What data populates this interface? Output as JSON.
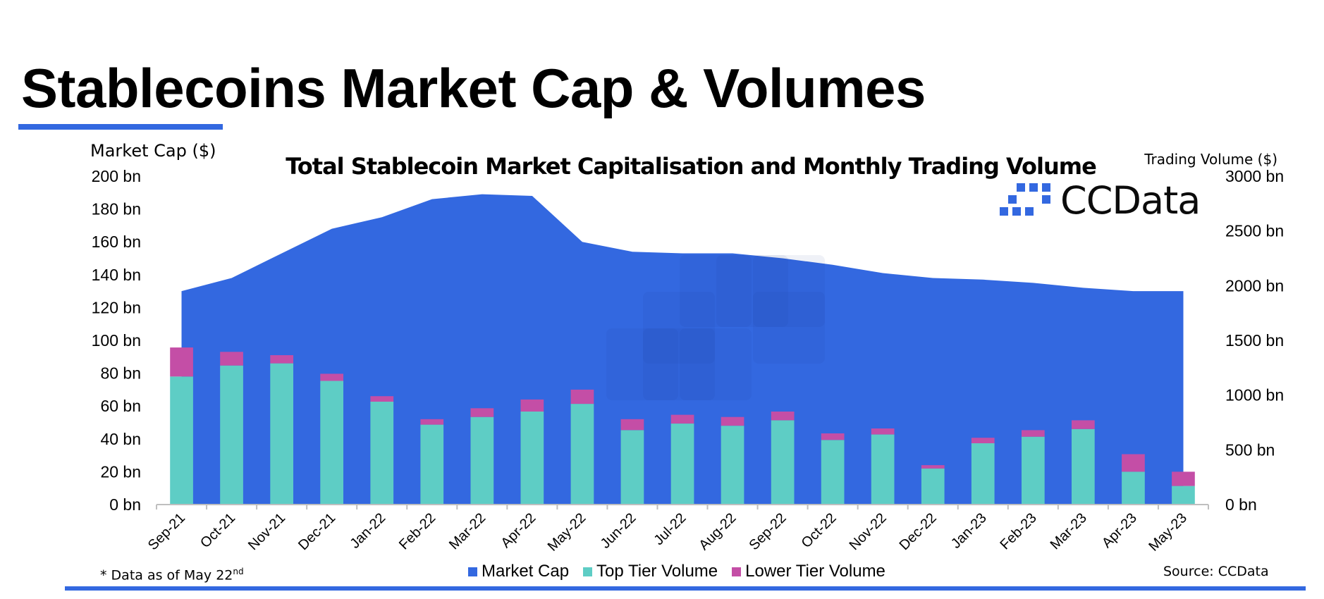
{
  "page": {
    "title": "Stablecoins Market Cap & Volumes",
    "footnote": "* Data as of May 22",
    "footnote_sup": "nd",
    "source": "Source: CCData"
  },
  "brand": {
    "name": "CCData",
    "icon": "ccdata-logo-icon"
  },
  "colors": {
    "market_cap": "#3368e0",
    "top_tier": "#5ecdc5",
    "lower_tier": "#c44ea6",
    "accent_rule": "#3368e0",
    "axis": "#bfbfbf"
  },
  "chart_data": {
    "type": "bar",
    "title": "Total Stablecoin Market Capitalisation and Monthly Trading Volume",
    "y_left_label": "Market Cap ($)",
    "y_right_label": "Trading Volume ($)",
    "y_left_range": [
      0,
      200
    ],
    "y_left_ticks": [
      "0 bn",
      "20 bn",
      "40 bn",
      "60 bn",
      "80 bn",
      "100 bn",
      "120 bn",
      "140 bn",
      "160 bn",
      "180 bn",
      "200 bn"
    ],
    "y_right_range": [
      0,
      3000
    ],
    "y_right_ticks": [
      "0 bn",
      "500 bn",
      "1000 bn",
      "1500 bn",
      "2000 bn",
      "2500 bn",
      "3000 bn"
    ],
    "grid": false,
    "legend_position": "bottom",
    "categories": [
      "Sep-21",
      "Oct-21",
      "Nov-21",
      "Dec-21",
      "Jan-22",
      "Feb-22",
      "Mar-22",
      "Apr-22",
      "May-22",
      "Jun-22",
      "Jul-22",
      "Aug-22",
      "Sep-22",
      "Oct-22",
      "Nov-22",
      "Dec-22",
      "Jan-23",
      "Feb-23",
      "Mar-23",
      "Apr-23",
      "May-23"
    ],
    "series": [
      {
        "name": "Market Cap",
        "type": "area",
        "axis": "left",
        "values": [
          130,
          138,
          153,
          168,
          175,
          186,
          189,
          188,
          160,
          154,
          153,
          153,
          150,
          146,
          141,
          138,
          137,
          135,
          132,
          130,
          130
        ]
      },
      {
        "name": "Top Tier Volume",
        "type": "bar",
        "axis": "right",
        "stack": "volume",
        "values": [
          1170,
          1270,
          1290,
          1130,
          940,
          730,
          800,
          850,
          920,
          680,
          740,
          720,
          770,
          590,
          640,
          330,
          560,
          620,
          690,
          300,
          170
        ]
      },
      {
        "name": "Lower Tier Volume",
        "type": "bar",
        "axis": "right",
        "stack": "volume",
        "values": [
          265,
          125,
          75,
          65,
          50,
          50,
          80,
          110,
          130,
          100,
          80,
          80,
          80,
          60,
          55,
          30,
          50,
          60,
          80,
          160,
          130
        ]
      }
    ]
  }
}
